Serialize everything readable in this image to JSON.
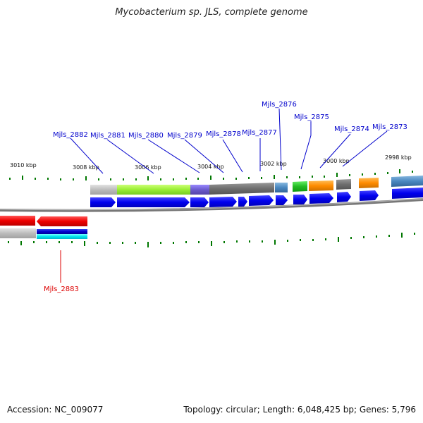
{
  "title": "Mycobacterium sp. JLS, complete genome",
  "footer": {
    "accession": "Accession: NC_009077",
    "summary": "Topology: circular; Length: 6,048,425 bp; Genes: 5,796"
  },
  "colors": {
    "label_blue": "#0000cc",
    "label_red": "#dd0000",
    "cds_blue": "#0000ee",
    "cds_red": "#ee0000",
    "tick_green": "#007700",
    "backbone": "#777777"
  },
  "scale_labels": [
    {
      "text": "3010 kbp"
    },
    {
      "text": "3008 kbp"
    },
    {
      "text": "3006 kbp"
    },
    {
      "text": "3004 kbp"
    },
    {
      "text": "3002 kbp"
    },
    {
      "text": "3000 kbp"
    },
    {
      "text": "2998 kbp"
    }
  ],
  "genes": [
    {
      "label": "Mjls_2882",
      "strand": "forward"
    },
    {
      "label": "Mjls_2881",
      "strand": "forward"
    },
    {
      "label": "Mjls_2880",
      "strand": "forward"
    },
    {
      "label": "Mjls_2879",
      "strand": "forward"
    },
    {
      "label": "Mjls_2878",
      "strand": "forward"
    },
    {
      "label": "Mjls_2877",
      "strand": "forward"
    },
    {
      "label": "Mjls_2876",
      "strand": "forward"
    },
    {
      "label": "Mjls_2875",
      "strand": "forward"
    },
    {
      "label": "Mjls_2874",
      "strand": "forward"
    },
    {
      "label": "Mjls_2873",
      "strand": "forward"
    },
    {
      "label": "Mjls_2883",
      "strand": "reverse"
    }
  ]
}
